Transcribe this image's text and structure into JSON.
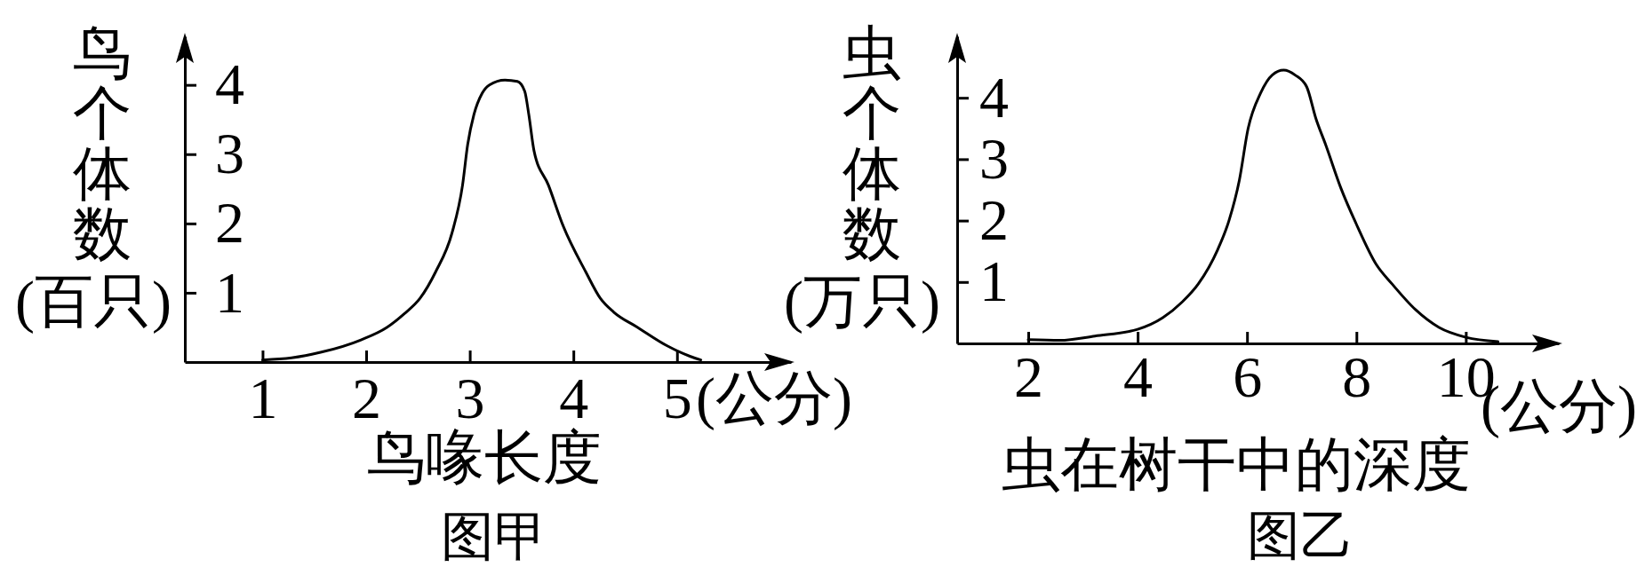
{
  "chart_data": [
    {
      "type": "line",
      "title": "图甲",
      "xlabel": "鸟喙长度",
      "ylabel": "鸟个体数(百只)",
      "annotations": [
        "(公分)"
      ],
      "x": [
        1.0,
        1.28,
        1.56,
        1.95,
        2.2,
        2.37,
        2.52,
        2.67,
        2.83,
        2.93,
        2.98,
        3.04,
        3.12,
        3.19,
        3.34,
        3.46,
        3.53,
        3.57,
        3.62,
        3.76,
        3.9,
        4.12,
        4.26,
        4.39,
        4.62,
        4.91,
        5.13,
        5.23
      ],
      "series": [
        {
          "color": "#000000",
          "values": [
            0.03,
            0.06,
            0.14,
            0.32,
            0.5,
            0.7,
            0.92,
            1.3,
            1.87,
            2.55,
            3.14,
            3.57,
            3.88,
            4.0,
            4.07,
            4.05,
            3.91,
            3.57,
            3.05,
            2.55,
            1.97,
            1.3,
            0.92,
            0.72,
            0.5,
            0.23,
            0.08,
            0.03
          ]
        }
      ],
      "xlim": [
        0.25,
        6.1
      ],
      "xticks": [
        1,
        2,
        3,
        4,
        5
      ],
      "ylim": [
        0,
        4.7
      ],
      "yticks": [
        1,
        2,
        3,
        4
      ]
    },
    {
      "type": "line",
      "title": "图乙",
      "xlabel": "虫在树干中的深度",
      "ylabel": "虫个体数(万只)",
      "annotations": [
        "(公分)"
      ],
      "x": [
        2.0,
        2.58,
        3.22,
        4.0,
        4.46,
        4.82,
        5.11,
        5.46,
        5.67,
        5.86,
        6.02,
        6.25,
        6.46,
        6.67,
        6.88,
        7.09,
        7.26,
        7.44,
        7.72,
        8.0,
        8.36,
        8.65,
        9.08,
        9.51,
        10.0,
        10.59
      ],
      "series": [
        {
          "color": "#000000",
          "values": [
            0.06,
            0.05,
            0.12,
            0.23,
            0.42,
            0.68,
            0.97,
            1.52,
            2.0,
            2.66,
            3.5,
            4.08,
            4.37,
            4.45,
            4.37,
            4.18,
            3.66,
            3.23,
            2.52,
            1.94,
            1.29,
            0.97,
            0.55,
            0.26,
            0.1,
            0.03
          ]
        }
      ],
      "xlim": [
        0.7,
        11.7
      ],
      "xticks": [
        2,
        4,
        6,
        8,
        10
      ],
      "ylim": [
        0,
        5
      ],
      "yticks": [
        1,
        2,
        3,
        4
      ]
    }
  ]
}
